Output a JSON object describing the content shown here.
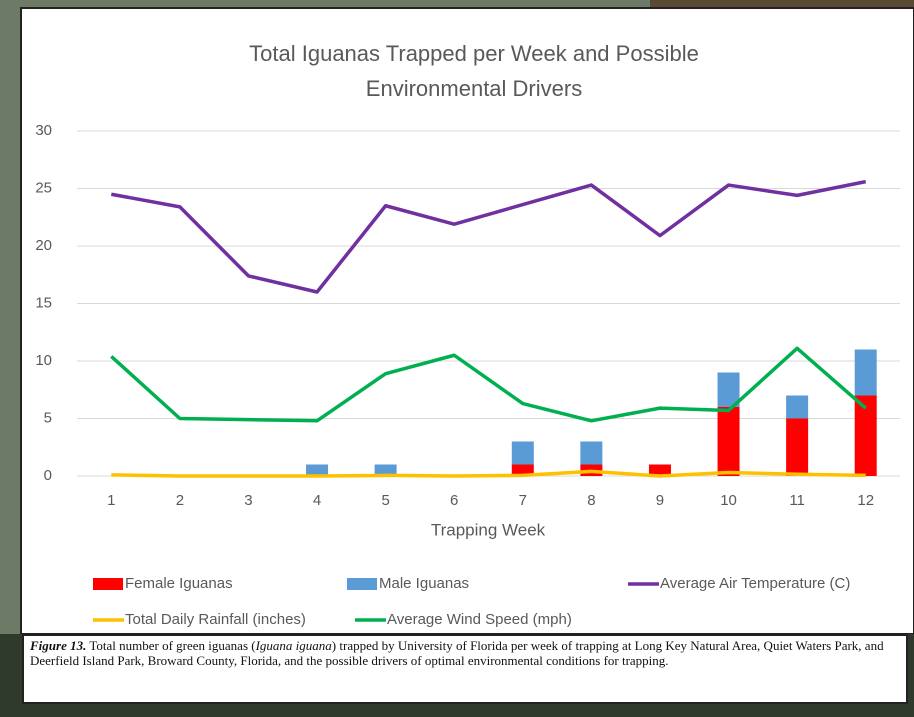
{
  "chart_data": {
    "type": "combo",
    "title_lines": [
      "Total Iguanas Trapped per Week and Possible",
      "Environmental Drivers"
    ],
    "x_label": "Trapping Week",
    "categories": [
      "1",
      "2",
      "3",
      "4",
      "5",
      "6",
      "7",
      "8",
      "9",
      "10",
      "11",
      "12"
    ],
    "series": [
      {
        "name": "Female Iguanas",
        "type": "bar",
        "color": "#ff0000",
        "values": [
          0,
          0,
          0,
          0,
          0,
          0,
          1,
          1,
          1,
          6,
          5,
          7
        ]
      },
      {
        "name": "Male Iguanas",
        "type": "bar",
        "color": "#5b9bd5",
        "values": [
          0,
          0,
          0,
          1,
          1,
          0,
          2,
          2,
          0,
          3,
          2,
          4
        ]
      },
      {
        "name": "Average Air Temperature (C)",
        "type": "line",
        "color": "#7030a0",
        "values": [
          24.5,
          23.4,
          17.4,
          16,
          23.5,
          21.9,
          23.6,
          25.3,
          20.9,
          25.3,
          24.4,
          25.6
        ]
      },
      {
        "name": "Total Daily Rainfall (inches)",
        "type": "line",
        "color": "#ffc000",
        "values": [
          0.1,
          0,
          0,
          0,
          0.05,
          0,
          0.05,
          0.4,
          0,
          0.3,
          0.15,
          0.05
        ]
      },
      {
        "name": "Average Wind Speed (mph)",
        "type": "line",
        "color": "#00b050",
        "values": [
          10.4,
          5,
          4.9,
          4.8,
          8.9,
          10.5,
          6.3,
          4.8,
          5.9,
          5.7,
          11.1,
          5.9
        ]
      }
    ],
    "stacked": true,
    "ylim": [
      0,
      30
    ],
    "yticks": [
      0,
      5,
      10,
      15,
      20,
      25,
      30
    ],
    "grid": true,
    "legend": "bottom"
  },
  "caption": {
    "label": "Figure 13.",
    "text_before": " Total number of green iguanas (",
    "species": "Iguana iguana",
    "text_after": ") trapped by University of Florida per week of trapping at Long Key Natural Area, Quiet Waters Park, and Deerfield Island Park, Broward County, Florida, and the possible drivers of optimal environmental conditions for trapping."
  }
}
